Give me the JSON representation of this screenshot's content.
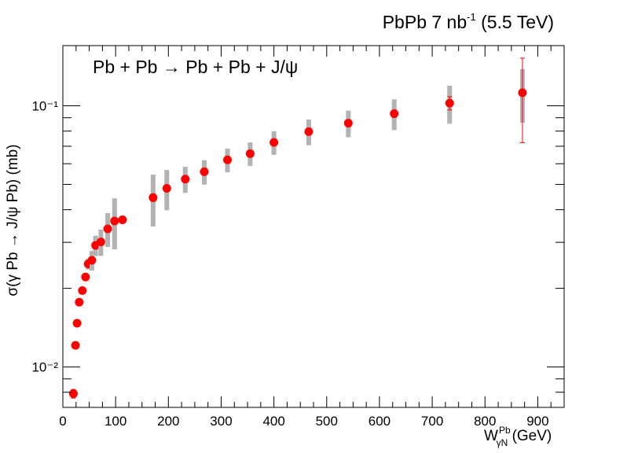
{
  "chart_data": {
    "type": "scatter",
    "title": "PbPb 7 nb",
    "title_sup": "-1",
    "title_rest": " (5.5 TeV)",
    "annotation": "Pb + Pb → Pb + Pb + J/ψ",
    "ylabel": "σ(γ Pb → J/ψ Pb) (mb)",
    "xlabel_main": "W",
    "xlabel_sup": "Pb",
    "xlabel_sub": "γN",
    "xlabel_unit": " (GeV)",
    "xlim": [
      0,
      950
    ],
    "ylim": [
      0.007,
      0.17
    ],
    "log_y": true,
    "grid": false,
    "x_ticks": [
      0,
      100,
      200,
      300,
      400,
      500,
      600,
      700,
      800,
      900
    ],
    "x_tick_labels": [
      "0",
      "100",
      "200",
      "300",
      "400",
      "500",
      "600",
      "700",
      "800",
      "900"
    ],
    "y_major_ticks": [
      0.01,
      0.1
    ],
    "y_tick_labels": [
      "10⁻²",
      "10⁻¹"
    ],
    "marker_color": "#ff0000",
    "syst_color": "#b3b3b3",
    "points": [
      {
        "x": 20,
        "y": 0.0079,
        "syst": 0.0001,
        "stat": 0.0003
      },
      {
        "x": 24,
        "y": 0.0121,
        "syst": 0.0002,
        "stat": 0.0002
      },
      {
        "x": 27,
        "y": 0.0147,
        "syst": 0.0003,
        "stat": 0.0002
      },
      {
        "x": 31,
        "y": 0.0177,
        "syst": 0.0004,
        "stat": 0.0002
      },
      {
        "x": 37,
        "y": 0.0196,
        "syst": 0.0005,
        "stat": 0.0002
      },
      {
        "x": 43,
        "y": 0.0221,
        "syst": 0.0007,
        "stat": 0.0003
      },
      {
        "x": 48,
        "y": 0.0248,
        "syst": 0.0012,
        "stat": 0.0003
      },
      {
        "x": 55,
        "y": 0.0256,
        "syst": 0.0022,
        "stat": 0.0003
      },
      {
        "x": 62,
        "y": 0.0292,
        "syst": 0.0026,
        "stat": 0.0004
      },
      {
        "x": 72,
        "y": 0.0301,
        "syst": 0.0035,
        "stat": 0.0004
      },
      {
        "x": 85,
        "y": 0.0338,
        "syst": 0.005,
        "stat": 0.0005
      },
      {
        "x": 98,
        "y": 0.0362,
        "syst": 0.008,
        "stat": 0.0005
      },
      {
        "x": 113,
        "y": 0.0366,
        "syst": 0.001,
        "stat": 0.0006
      },
      {
        "x": 171,
        "y": 0.0445,
        "syst": 0.01,
        "stat": 0.0015
      },
      {
        "x": 197,
        "y": 0.0483,
        "syst": 0.0085,
        "stat": 0.0012
      },
      {
        "x": 232,
        "y": 0.0524,
        "syst": 0.006,
        "stat": 0.001
      },
      {
        "x": 268,
        "y": 0.0559,
        "syst": 0.006,
        "stat": 0.001
      },
      {
        "x": 312,
        "y": 0.0621,
        "syst": 0.0065,
        "stat": 0.0012
      },
      {
        "x": 355,
        "y": 0.0656,
        "syst": 0.0068,
        "stat": 0.0012
      },
      {
        "x": 400,
        "y": 0.0724,
        "syst": 0.0075,
        "stat": 0.0014
      },
      {
        "x": 466,
        "y": 0.0796,
        "syst": 0.009,
        "stat": 0.0016
      },
      {
        "x": 541,
        "y": 0.0858,
        "syst": 0.01,
        "stat": 0.0018
      },
      {
        "x": 628,
        "y": 0.0933,
        "syst": 0.0125,
        "stat": 0.003
      },
      {
        "x": 733,
        "y": 0.1024,
        "syst": 0.017,
        "stat": 0.006
      },
      {
        "x": 871,
        "y": 0.1122,
        "syst": 0.026,
        "stat": 0.04
      }
    ]
  }
}
